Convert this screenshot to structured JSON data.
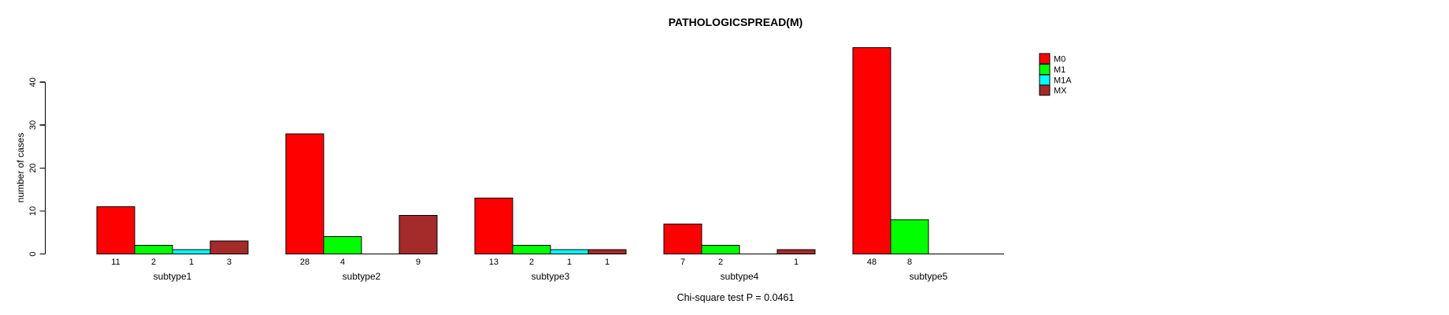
{
  "title": "PATHOLOGICSPREAD(M)",
  "annotation": "Chi-square test P = 0.0461",
  "chart_data": {
    "type": "bar",
    "grouped": true,
    "title": "PATHOLOGICSPREAD(M)",
    "xlabel": "",
    "ylabel": "number of cases",
    "categories": [
      "subtype1",
      "subtype2",
      "subtype3",
      "subtype4",
      "subtype5"
    ],
    "series": [
      {
        "name": "M0",
        "color": "#FF0000",
        "values": [
          11,
          28,
          13,
          7,
          48
        ]
      },
      {
        "name": "M1",
        "color": "#00FF00",
        "values": [
          2,
          4,
          2,
          2,
          8
        ]
      },
      {
        "name": "M1A",
        "color": "#00FFFF",
        "values": [
          1,
          0,
          1,
          0,
          0
        ]
      },
      {
        "name": "MX",
        "color": "#A52A2A",
        "values": [
          3,
          9,
          1,
          1,
          0
        ]
      }
    ],
    "yticks": [
      0,
      10,
      20,
      30,
      40
    ],
    "ylim": [
      0,
      48
    ],
    "grid": false,
    "bar_value_labels": true,
    "legend_position": "right",
    "annotation": "Chi-square test P = 0.0461",
    "colors": {
      "axis": "#000000",
      "bar_outline": "#000000",
      "background": "#FFFFFF"
    }
  }
}
